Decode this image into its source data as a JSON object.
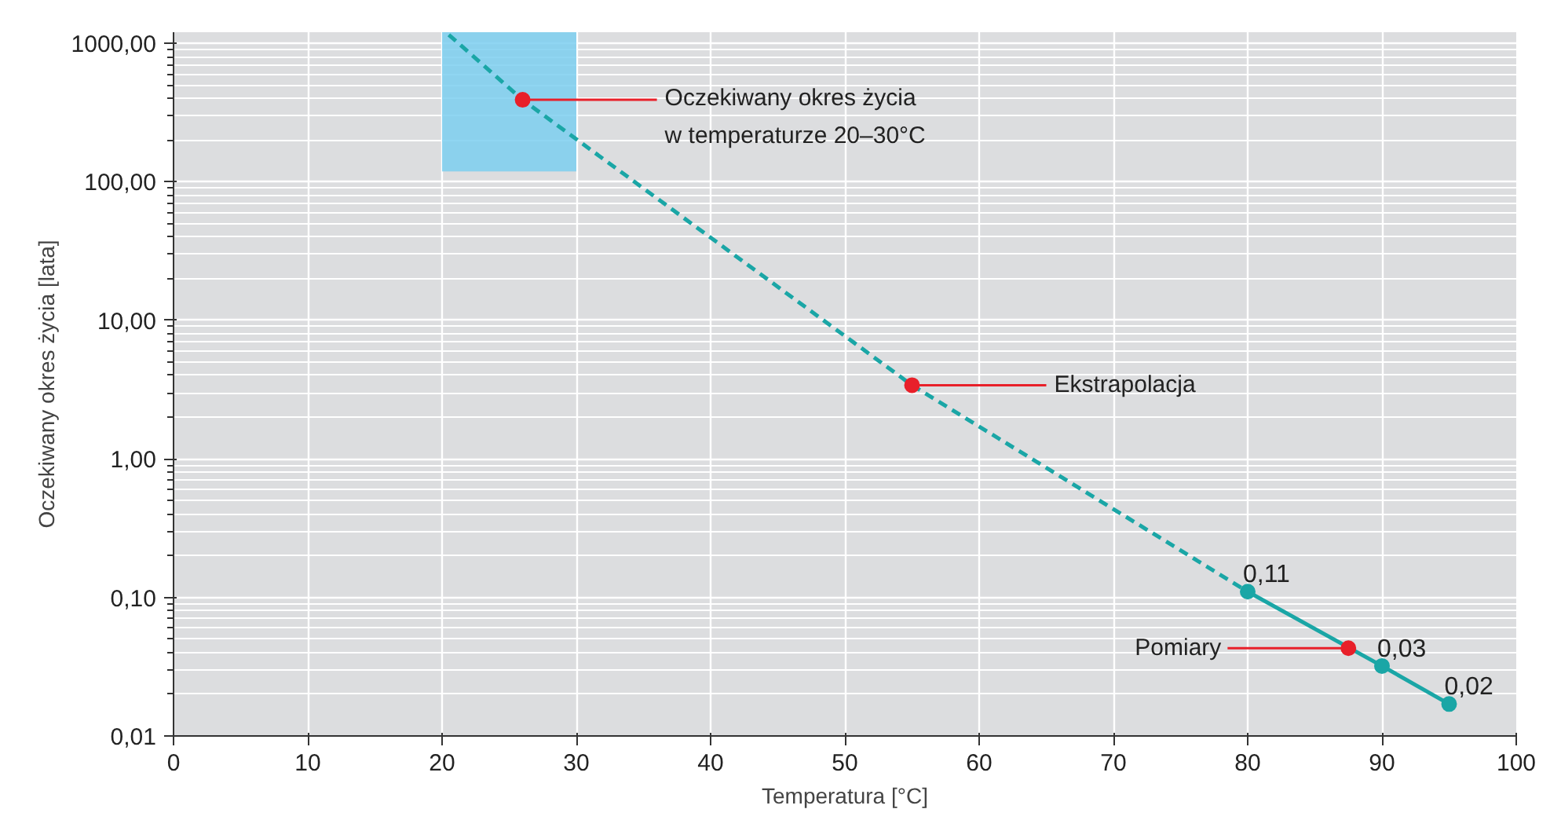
{
  "chart_data": {
    "type": "line",
    "xlabel": "Temperatura [°C]",
    "ylabel": "Oczekiwany okres życia [lata]",
    "log": "y",
    "xlim": [
      0,
      100
    ],
    "xticks": [
      0,
      10,
      20,
      30,
      40,
      50,
      60,
      70,
      80,
      90,
      100
    ],
    "ylim": [
      0.01,
      1200
    ],
    "yticks": [
      {
        "value": 0.01,
        "label": "0,01"
      },
      {
        "value": 0.1,
        "label": "0,10"
      },
      {
        "value": 1,
        "label": "1,00"
      },
      {
        "value": 10,
        "label": "10,00"
      },
      {
        "value": 100,
        "label": "100,00"
      },
      {
        "value": 1000,
        "label": "1000,00"
      }
    ],
    "grid": true,
    "series": [
      {
        "color": "#1aa6a6",
        "line_style": "dashed",
        "marker": "none",
        "x": [
          20.5,
          26,
          55,
          80
        ],
        "values": [
          1150,
          390,
          3.4,
          0.11
        ]
      },
      {
        "color": "#1aa6a6",
        "line_style": "solid",
        "marker": "circle",
        "x": [
          80,
          90,
          95
        ],
        "values": [
          0.11,
          0.032,
          0.017
        ],
        "value_labels": [
          "0,11",
          "0,03",
          "0,02"
        ]
      },
      {
        "type": "scatter",
        "color": "#e8202a",
        "marker": "circle",
        "x": [
          26,
          55,
          87.5
        ],
        "values": [
          390,
          3.4,
          0.043
        ]
      }
    ],
    "bands": [
      {
        "axis": "x",
        "from": 20,
        "to": 30,
        "color": "#7ccff0"
      }
    ],
    "annotations": [
      {
        "text": "Oczekiwany okres życia\nw temperaturze 20–30°C",
        "x": 26,
        "y": 390
      },
      {
        "text": "Ekstrapolacja",
        "x": 55,
        "y": 3.4
      },
      {
        "text": "Pomiary",
        "x": 87.5,
        "y": 0.043
      }
    ]
  }
}
